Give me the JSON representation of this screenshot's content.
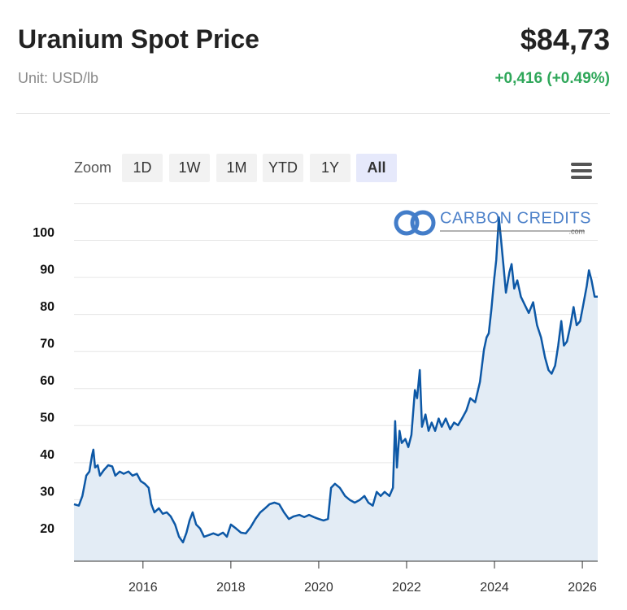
{
  "header": {
    "title": "Uranium Spot Price",
    "unit": "Unit: USD/lb",
    "price": "$84,73",
    "change": "+0,416 (+0.49%)"
  },
  "toolbar": {
    "zoom_label": "Zoom",
    "buttons": [
      "1D",
      "1W",
      "1M",
      "YTD",
      "1Y",
      "All"
    ],
    "selected": "All"
  },
  "watermark": {
    "text": "CARBON CREDITS",
    "suffix": ".com"
  },
  "chart_data": {
    "type": "line",
    "color": "#0d58a6",
    "fill": "#e3ecf5",
    "grid": true,
    "xlim": [
      2014.43,
      2026.35
    ],
    "xticks": [
      2016,
      2018,
      2020,
      2022,
      2024,
      2026
    ],
    "ylim": [
      13.4,
      110
    ],
    "yticks": [
      20,
      30,
      40,
      50,
      60,
      70,
      80,
      90,
      100
    ],
    "x": [
      2014.43,
      2014.54,
      2014.62,
      2014.71,
      2014.78,
      2014.84,
      2014.87,
      2014.91,
      2014.97,
      2015.02,
      2015.11,
      2015.21,
      2015.3,
      2015.37,
      2015.47,
      2015.56,
      2015.67,
      2015.76,
      2015.86,
      2015.95,
      2016.04,
      2016.13,
      2016.19,
      2016.26,
      2016.36,
      2016.45,
      2016.54,
      2016.63,
      2016.73,
      2016.82,
      2016.91,
      2016.99,
      2017.06,
      2017.13,
      2017.21,
      2017.3,
      2017.39,
      2017.49,
      2017.6,
      2017.71,
      2017.82,
      2017.91,
      2018.0,
      2018.12,
      2018.23,
      2018.34,
      2018.45,
      2018.56,
      2018.67,
      2018.78,
      2018.88,
      2018.99,
      2019.1,
      2019.21,
      2019.32,
      2019.43,
      2019.56,
      2019.67,
      2019.78,
      2019.89,
      2020.0,
      2020.11,
      2020.21,
      2020.28,
      2020.37,
      2020.48,
      2020.6,
      2020.71,
      2020.82,
      2020.93,
      2021.04,
      2021.13,
      2021.23,
      2021.32,
      2021.41,
      2021.5,
      2021.61,
      2021.69,
      2021.74,
      2021.78,
      2021.84,
      2021.89,
      2021.97,
      2022.04,
      2022.11,
      2022.19,
      2022.24,
      2022.3,
      2022.35,
      2022.43,
      2022.5,
      2022.57,
      2022.65,
      2022.73,
      2022.8,
      2022.89,
      2022.99,
      2023.08,
      2023.17,
      2023.26,
      2023.36,
      2023.45,
      2023.56,
      2023.67,
      2023.76,
      2023.82,
      2023.87,
      2023.93,
      2023.99,
      2024.04,
      2024.1,
      2024.15,
      2024.21,
      2024.26,
      2024.34,
      2024.39,
      2024.45,
      2024.52,
      2024.6,
      2024.69,
      2024.78,
      2024.88,
      2024.97,
      2025.06,
      2025.15,
      2025.23,
      2025.3,
      2025.38,
      2025.45,
      2025.52,
      2025.58,
      2025.65,
      2025.73,
      2025.8,
      2025.87,
      2025.95,
      2026.02,
      2026.1,
      2026.15,
      2026.21,
      2026.28,
      2026.35
    ],
    "values": [
      28.8,
      28.4,
      31,
      36.5,
      37.6,
      42,
      43.5,
      38.7,
      39.3,
      36.5,
      38,
      39.3,
      39,
      36.5,
      37.6,
      37,
      37.6,
      36.5,
      37,
      35,
      34.3,
      33.2,
      28.8,
      26.6,
      27.7,
      26.2,
      26.6,
      25.5,
      23.3,
      20,
      18.5,
      21.1,
      24.4,
      26.6,
      23.3,
      22.2,
      20,
      20.4,
      20.9,
      20.4,
      21.1,
      20,
      23.3,
      22.2,
      21.1,
      20.9,
      22.6,
      24.8,
      26.6,
      27.7,
      28.8,
      29.2,
      28.8,
      26.6,
      24.8,
      25.5,
      25.9,
      25.3,
      25.9,
      25.3,
      24.8,
      24.4,
      24.8,
      33.2,
      34.3,
      33.2,
      31,
      29.9,
      29.2,
      29.9,
      31,
      29.2,
      28.4,
      32.1,
      31,
      32.1,
      31,
      33.2,
      51.2,
      38.7,
      48.6,
      45.3,
      46.4,
      44.2,
      47.5,
      59.6,
      57.4,
      65,
      49.7,
      53,
      48.6,
      50.8,
      48.6,
      51.9,
      49.7,
      51.9,
      49,
      50.8,
      50.1,
      51.9,
      54.1,
      57.4,
      56.3,
      61.8,
      70.5,
      73.8,
      74.9,
      81.5,
      89.2,
      94.7,
      106.2,
      100.2,
      92.5,
      85.9,
      91.4,
      93.6,
      87,
      89.2,
      84.8,
      82.6,
      80.4,
      83.3,
      77.1,
      73.8,
      68.4,
      65,
      64,
      66.2,
      71.6,
      78.2,
      71.6,
      72.7,
      77.1,
      82,
      77.1,
      78.2,
      82.6,
      87.7,
      91.9,
      89.2,
      84.8,
      84.8
    ]
  }
}
